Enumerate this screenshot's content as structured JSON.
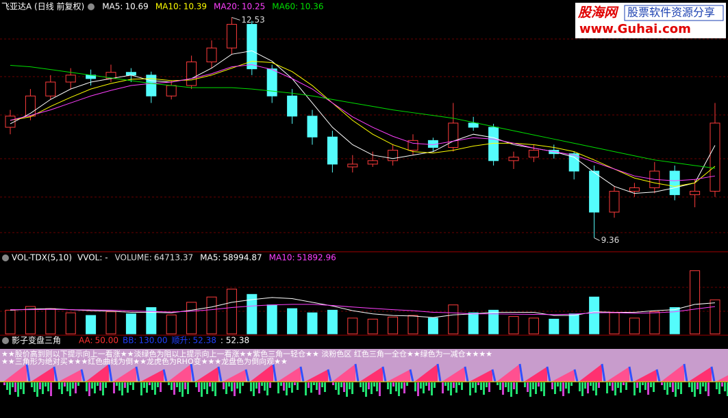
{
  "price_panel": {
    "title": "飞亚达A (日线 前复权)",
    "ylim": [
      9.16,
      12.78
    ],
    "candles": {
      "open": [
        10.95,
        11.11,
        11.4,
        11.6,
        11.7,
        11.65,
        11.74,
        11.7,
        11.4,
        11.55,
        11.89,
        12.09,
        12.43,
        11.79,
        11.4,
        11.11,
        10.81,
        10.38,
        10.42,
        10.47,
        10.62,
        10.76,
        10.66,
        11.01,
        10.95,
        10.47,
        10.52,
        10.62,
        10.57,
        10.32,
        9.73,
        10.03,
        10.08,
        10.32,
        9.98,
        10.03
      ],
      "high": [
        11.2,
        11.5,
        11.7,
        11.8,
        11.78,
        11.85,
        11.8,
        11.75,
        11.62,
        11.98,
        12.2,
        12.53,
        12.48,
        11.85,
        11.5,
        11.2,
        10.9,
        10.55,
        10.6,
        10.7,
        10.85,
        10.8,
        11.3,
        11.1,
        11.0,
        10.6,
        10.7,
        10.7,
        10.6,
        10.4,
        10.1,
        10.15,
        10.45,
        10.4,
        10.2,
        11.3
      ],
      "low": [
        10.85,
        11.05,
        11.35,
        11.5,
        11.55,
        11.6,
        11.6,
        11.3,
        11.35,
        11.5,
        11.8,
        12.0,
        11.7,
        11.3,
        11.0,
        10.7,
        10.3,
        10.3,
        10.38,
        10.4,
        10.55,
        10.6,
        10.6,
        10.9,
        10.4,
        10.35,
        10.45,
        10.5,
        10.2,
        9.36,
        9.65,
        9.95,
        10.0,
        9.9,
        9.8,
        9.95
      ],
      "close": [
        11.11,
        11.4,
        11.6,
        11.7,
        11.65,
        11.74,
        11.7,
        11.4,
        11.55,
        11.89,
        12.09,
        12.43,
        11.79,
        11.4,
        11.11,
        10.81,
        10.42,
        10.42,
        10.47,
        10.62,
        10.76,
        10.66,
        11.01,
        10.95,
        10.47,
        10.52,
        10.62,
        10.57,
        10.32,
        9.73,
        10.03,
        10.08,
        10.32,
        9.98,
        10.03,
        11.01
      ]
    },
    "series": [
      {
        "name": "MA5:",
        "color": "#ffffff",
        "values": [
          11.0,
          11.15,
          11.35,
          11.5,
          11.6,
          11.65,
          11.7,
          11.62,
          11.6,
          11.65,
          11.8,
          12.0,
          12.05,
          11.9,
          11.65,
          11.3,
          10.95,
          10.7,
          10.55,
          10.5,
          10.55,
          10.6,
          10.75,
          10.85,
          10.8,
          10.7,
          10.65,
          10.6,
          10.52,
          10.3,
          10.1,
          10.0,
          10.02,
          10.08,
          10.15,
          10.69
        ]
      },
      {
        "name": "MA10:",
        "color": "#ffff00",
        "values": [
          11.05,
          11.1,
          11.25,
          11.38,
          11.5,
          11.58,
          11.64,
          11.65,
          11.62,
          11.63,
          11.7,
          11.8,
          11.9,
          11.88,
          11.75,
          11.55,
          11.3,
          11.05,
          10.85,
          10.7,
          10.6,
          10.58,
          10.62,
          10.68,
          10.72,
          10.72,
          10.7,
          10.66,
          10.6,
          10.48,
          10.35,
          10.22,
          10.15,
          10.1,
          10.15,
          10.39
        ]
      },
      {
        "name": "MA20:",
        "color": "#ff40ff",
        "values": [
          11.05,
          11.12,
          11.2,
          11.3,
          11.4,
          11.48,
          11.55,
          11.58,
          11.6,
          11.65,
          11.72,
          11.82,
          11.85,
          11.78,
          11.65,
          11.5,
          11.3,
          11.1,
          10.95,
          10.82,
          10.72,
          10.7,
          10.75,
          10.8,
          10.78,
          10.72,
          10.65,
          10.6,
          10.55,
          10.45,
          10.35,
          10.25,
          10.2,
          10.18,
          10.2,
          10.25
        ]
      },
      {
        "name": "MA60:",
        "color": "#00e000",
        "values": [
          11.84,
          11.82,
          11.78,
          11.74,
          11.7,
          11.66,
          11.62,
          11.58,
          11.55,
          11.52,
          11.52,
          11.52,
          11.5,
          11.47,
          11.44,
          11.4,
          11.35,
          11.3,
          11.25,
          11.2,
          11.16,
          11.12,
          11.08,
          11.02,
          10.96,
          10.9,
          10.84,
          10.78,
          10.72,
          10.66,
          10.6,
          10.54,
          10.48,
          10.44,
          10.4,
          10.36
        ]
      }
    ]
  },
  "volume_panel": {
    "title": "VOL-TDX(5,10)",
    "vvol": "VVOL: -",
    "ylim": [
      0,
      130000
    ],
    "series": [
      {
        "name": "VOLUME:",
        "color": "#dddddd",
        "values": [
          45000,
          52000,
          48000,
          40000,
          35000,
          42000,
          38000,
          50000,
          36000,
          60000,
          70000,
          85000,
          75000,
          55000,
          48000,
          40000,
          45000,
          30000,
          28000,
          32000,
          35000,
          30000,
          55000,
          40000,
          45000,
          33000,
          30000,
          28000,
          38000,
          70000,
          40000,
          30000,
          42000,
          50000,
          120000,
          64713.37
        ]
      },
      {
        "name": "MA5:",
        "color": "#ffffff",
        "values": [
          45000,
          47000,
          48000,
          46000,
          44000,
          43000,
          41000,
          41000,
          40000,
          45000,
          51000,
          60000,
          65000,
          69000,
          67000,
          60000,
          53000,
          44000,
          38000,
          35000,
          34000,
          31000,
          36000,
          38000,
          41000,
          41000,
          41000,
          35000,
          35000,
          42000,
          41000,
          41000,
          44000,
          46000,
          56000,
          58994.87
        ]
      },
      {
        "name": "MA10:",
        "color": "#ff40ff",
        "values": [
          46000,
          46000,
          46500,
          46000,
          45500,
          45000,
          43500,
          42500,
          41500,
          43000,
          46000,
          50000,
          53000,
          55000,
          56000,
          56000,
          54000,
          51000,
          48500,
          46000,
          44000,
          41000,
          40000,
          38000,
          38000,
          37500,
          37000,
          36500,
          37500,
          40000,
          40500,
          39000,
          40000,
          42000,
          47000,
          51892.96
        ]
      }
    ]
  },
  "indicator_panel": {
    "title": "影子变盘三角",
    "params": [
      {
        "name": "AA:",
        "color": "#ff3030",
        "value": {
          "value": 50,
          "label": "50.00"
        }
      },
      {
        "name": "BB:",
        "color": "#2040ff",
        "value": {
          "value": 130,
          "label": "130.00"
        }
      },
      {
        "name": "顺升:",
        "color": "#2040ff",
        "value": 52.38
      }
    ],
    "extra": {
      "value": 52.38,
      "label": ": 52.38"
    },
    "notes": [
      "★★股价高到则以下提示向上一看涨★★淡绿色为阻以上提示向上一看涨★★紫色三角一轻仓★★ 淡粉色区 红色三角一全仓★★绿色为一减仓★★★★",
      "★★三角形为绝对买★★★红色曲线为倒★★龙虎色为RHO变★★★龙盘色为倒向观★★"
    ]
  },
  "watermark": {
    "logo": "股海网",
    "slogan": "股票软件资源分享",
    "url": "www.Guhai.com"
  }
}
